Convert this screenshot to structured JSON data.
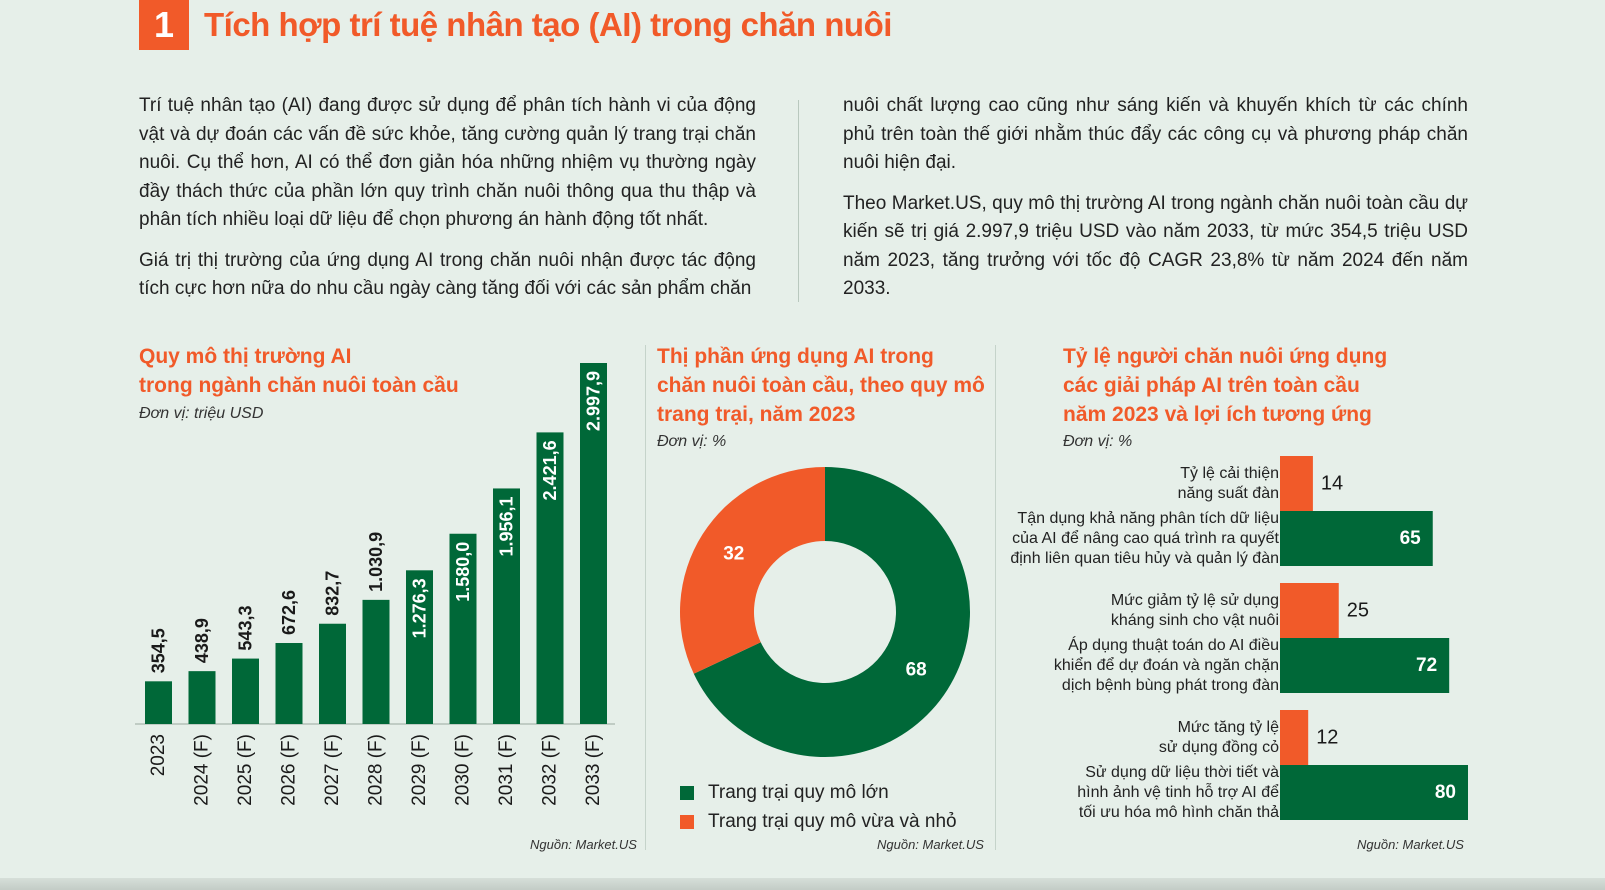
{
  "header": {
    "number": "1",
    "title": "Tích hợp trí tuệ nhân tạo (AI) trong chăn nuôi"
  },
  "article": {
    "left_paragraphs": [
      "Trí tuệ nhân tạo (AI) đang được sử dụng để phân tích hành vi của động vật và dự đoán các vấn đề sức khỏe, tăng cường quản lý trang trại chăn nuôi. Cụ thể hơn, AI có thể đơn giản hóa những nhiệm vụ thường ngày đầy thách thức của phần lớn quy trình chăn nuôi thông qua thu thập và phân tích nhiều loại dữ liệu để chọn phương án hành động tốt nhất.",
      "Giá trị thị trường của ứng dụng AI trong chăn nuôi nhận được tác động tích cực hơn nữa do nhu cầu ngày càng tăng đối với các sản phẩm chăn"
    ],
    "right_paragraphs": [
      "nuôi chất lượng cao cũng như sáng kiến và khuyến khích từ các chính phủ trên toàn thế giới nhằm thúc đẩy các công cụ và phương pháp chăn nuôi hiện đại.",
      "Theo Market.US, quy mô thị trường AI trong ngành chăn nuôi toàn cầu dự kiến sẽ trị giá 2.997,9 triệu USD vào năm 2033, từ mức 354,5 triệu USD năm 2023, tăng trưởng với tốc độ CAGR 23,8% từ năm 2024 đến năm 2033."
    ]
  },
  "chart_data": [
    {
      "type": "bar",
      "title_line1": "Quy mô thị trường AI",
      "title_line2": "trong ngành chăn nuôi toàn cầu",
      "unit": "Đơn vị: triệu USD",
      "source": "Nguồn: Market.US",
      "categories": [
        "2023",
        "2024 (F)",
        "2025 (F)",
        "2026 (F)",
        "2027 (F)",
        "2028 (F)",
        "2029 (F)",
        "2030 (F)",
        "2031 (F)",
        "2032 (F)",
        "2033 (F)"
      ],
      "values": [
        354.5,
        438.9,
        543.3,
        672.6,
        832.7,
        1030.9,
        1276.3,
        1580.0,
        1956.1,
        2421.6,
        2997.9
      ],
      "value_labels": [
        "354,5",
        "438,9",
        "543,3",
        "672,6",
        "832,7",
        "1.030,9",
        "1.276,3",
        "1.580,0",
        "1.956,1",
        "2.421,6",
        "2.997,9"
      ],
      "ylim": [
        0,
        2997.9
      ],
      "bar_color": "#006838"
    },
    {
      "type": "pie",
      "title_line1": "Thị phần ứng dụng AI trong",
      "title_line2": "chăn nuôi toàn cầu, theo quy mô",
      "title_line3": "trang trại, năm 2023",
      "unit": "Đơn vị: %",
      "source": "Nguồn: Market.US",
      "slices": [
        {
          "label": "Trang trại quy mô lớn",
          "value": 68,
          "color": "#006838"
        },
        {
          "label": "Trang trại quy mô vừa và nhỏ",
          "value": 32,
          "color": "#f15a29"
        }
      ],
      "legend_position": "bottom"
    },
    {
      "type": "bar",
      "orientation": "horizontal",
      "title_line1": "Tỷ lệ người chăn nuôi ứng dụng",
      "title_line2": "các giải pháp AI trên toàn cầu",
      "title_line3": "năm 2023 và lợi ích tương ứng",
      "unit": "Đơn vị: %",
      "source": "Nguồn: Market.US",
      "xlim": [
        0,
        80
      ],
      "groups": [
        {
          "benefit": {
            "label_lines": [
              "Tỷ lệ cải thiện",
              "năng suất đàn"
            ],
            "value": 14,
            "color": "#f15a29"
          },
          "solution": {
            "label_lines": [
              "Tận dụng khả năng phân tích dữ liệu",
              "của AI để nâng cao quá trình ra quyết",
              "định liên quan tiêu hủy và quản lý đàn"
            ],
            "value": 65,
            "color": "#006838"
          }
        },
        {
          "benefit": {
            "label_lines": [
              "Mức giảm tỷ lệ sử dụng",
              "kháng sinh cho vật nuôi"
            ],
            "value": 25,
            "color": "#f15a29"
          },
          "solution": {
            "label_lines": [
              "Áp dụng thuật toán do AI điều",
              "khiển để dự đoán và ngăn chặn",
              "dịch bệnh bùng phát trong đàn"
            ],
            "value": 72,
            "color": "#006838"
          }
        },
        {
          "benefit": {
            "label_lines": [
              "Mức tăng tỷ lệ",
              "sử dụng đồng cỏ"
            ],
            "value": 12,
            "color": "#f15a29"
          },
          "solution": {
            "label_lines": [
              "Sử dụng dữ liệu thời tiết và",
              "hình ảnh vệ tinh hỗ trợ AI để",
              "tối ưu hóa mô hình chăn thả"
            ],
            "value": 80,
            "color": "#006838"
          }
        }
      ]
    }
  ]
}
